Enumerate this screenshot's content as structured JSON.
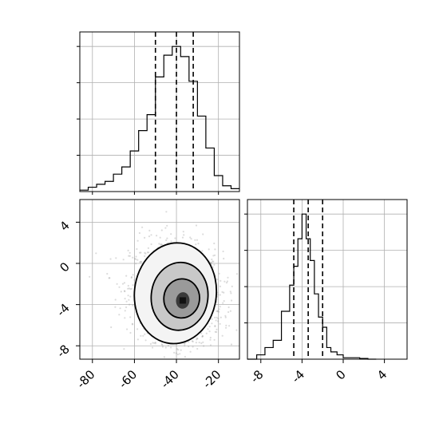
{
  "chart_data": {
    "type": "corner",
    "grid": true,
    "panels": [
      {
        "id": "x_marginal",
        "type": "histogram",
        "xlim": [
          -86,
          -10
        ],
        "ylim": [
          0,
          1.1
        ],
        "y_ticks_unlabeled": [
          0.25,
          0.5,
          0.75,
          1.0
        ],
        "bins_x": [
          -90,
          -86,
          -82,
          -78,
          -74,
          -70,
          -66,
          -62,
          -58,
          -54,
          -50,
          -46,
          -42,
          -38,
          -34,
          -30,
          -26,
          -22,
          -18,
          -14,
          -10
        ],
        "counts": [
          0.0,
          0.01,
          0.03,
          0.05,
          0.07,
          0.12,
          0.17,
          0.28,
          0.42,
          0.53,
          0.79,
          0.94,
          1.0,
          0.93,
          0.76,
          0.52,
          0.3,
          0.11,
          0.04,
          0.02
        ],
        "quantiles": [
          -50,
          -40,
          -32
        ]
      },
      {
        "id": "joint",
        "type": "2d-histogram-contour",
        "x_ticks": [
          "-80",
          "-60",
          "-40",
          "-20"
        ],
        "x_tick_values": [
          -80,
          -60,
          -40,
          -20
        ],
        "y_ticks": [
          "4",
          "0",
          "-4",
          "-8"
        ],
        "y_tick_values": [
          4,
          0,
          -4,
          -8
        ],
        "xlim": [
          -86,
          -10
        ],
        "ylim": [
          -9.3,
          6.2
        ],
        "center": [
          -37,
          -3.6
        ],
        "contour_levels": [
          {
            "center": [
              -40.5,
              -2.9
            ],
            "rx": 19.5,
            "ry": 4.9
          },
          {
            "center": [
              -38.5,
              -3.2
            ],
            "rx": 13.5,
            "ry": 3.3
          },
          {
            "center": [
              -37.5,
              -3.4
            ],
            "rx": 8.5,
            "ry": 1.9
          },
          {
            "center": [
              -37,
              -3.6
            ],
            "rx": 3.2,
            "ry": 0.8
          }
        ]
      },
      {
        "id": "y_marginal",
        "type": "histogram",
        "x_ticks": [
          "-8",
          "-4",
          "0",
          "4"
        ],
        "x_tick_values": [
          -8,
          -4,
          0,
          4
        ],
        "xlim": [
          -9.3,
          6.2
        ],
        "ylim": [
          0,
          1.1
        ],
        "y_ticks_unlabeled": [
          0.25,
          0.5,
          0.75,
          1.0
        ],
        "bins_x": [
          -9.3,
          -8.4,
          -7.6,
          -6.8,
          -6.0,
          -5.2,
          -4.8,
          -4.4,
          -4.0,
          -3.6,
          -3.2,
          -2.8,
          -2.4,
          -2.0,
          -1.6,
          -1.2,
          -0.6,
          0.0,
          0.8,
          1.6,
          2.4,
          3.2
        ],
        "counts": [
          0.0,
          0.03,
          0.08,
          0.13,
          0.33,
          0.51,
          0.64,
          0.83,
          1.0,
          0.83,
          0.68,
          0.45,
          0.29,
          0.22,
          0.08,
          0.05,
          0.03,
          0.01,
          0.01,
          0.005,
          0.0
        ],
        "quantiles": [
          -4.8,
          -3.4,
          -2.0
        ]
      }
    ]
  }
}
